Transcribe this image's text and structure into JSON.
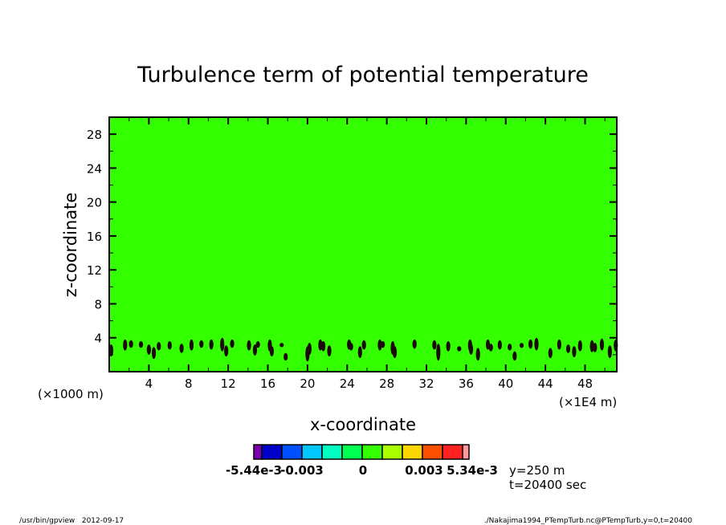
{
  "chart_data": {
    "type": "heatmap",
    "title": "Turbulence term of potential temperature",
    "xlabel": "x-coordinate",
    "ylabel": "z-coordinate",
    "x_unit_note": "(×1E4 m)",
    "y_unit_note": "(×1000 m)",
    "xlim": [
      0,
      51.2
    ],
    "ylim": [
      0,
      30
    ],
    "xticks": [
      4,
      8,
      12,
      16,
      20,
      24,
      28,
      32,
      36,
      40,
      44,
      48
    ],
    "yticks": [
      4,
      8,
      12,
      16,
      20,
      24,
      28
    ],
    "xtick_labels": [
      "4",
      "8",
      "12",
      "16",
      "20",
      "24",
      "28",
      "32",
      "36",
      "40",
      "44",
      "48"
    ],
    "ytick_labels": [
      "4",
      "8",
      "12",
      "16",
      "20",
      "24",
      "28"
    ],
    "background_color": "#33ff00",
    "blob_color": "#1a0a0a",
    "blobs": [
      [
        0.2,
        1.8,
        3.2
      ],
      [
        1.6,
        2.5,
        3.8
      ],
      [
        2.2,
        2.8,
        3.7
      ],
      [
        3.2,
        2.8,
        3.6
      ],
      [
        4.0,
        2.0,
        3.2
      ],
      [
        4.5,
        1.5,
        2.9
      ],
      [
        5.0,
        2.5,
        3.5
      ],
      [
        6.1,
        2.6,
        3.6
      ],
      [
        7.3,
        2.2,
        3.3
      ],
      [
        8.3,
        2.5,
        3.8
      ],
      [
        9.3,
        2.8,
        3.7
      ],
      [
        10.3,
        2.6,
        3.8
      ],
      [
        11.4,
        2.4,
        4.0
      ],
      [
        11.8,
        1.8,
        3.1
      ],
      [
        12.4,
        2.8,
        3.8
      ],
      [
        14.1,
        2.5,
        3.7
      ],
      [
        14.7,
        1.9,
        3.2
      ],
      [
        15.0,
        2.8,
        3.6
      ],
      [
        16.2,
        2.4,
        3.8
      ],
      [
        16.4,
        1.8,
        3.0
      ],
      [
        17.4,
        2.9,
        3.4
      ],
      [
        17.8,
        1.3,
        2.2
      ],
      [
        20.0,
        1.2,
        3.0
      ],
      [
        20.2,
        2.0,
        3.4
      ],
      [
        21.3,
        2.5,
        3.8
      ],
      [
        21.6,
        2.4,
        3.6
      ],
      [
        22.2,
        1.8,
        3.1
      ],
      [
        24.2,
        2.6,
        3.8
      ],
      [
        24.4,
        2.5,
        3.4
      ],
      [
        25.3,
        1.6,
        3.0
      ],
      [
        25.7,
        2.6,
        3.7
      ],
      [
        27.3,
        2.5,
        3.8
      ],
      [
        27.6,
        2.8,
        3.6
      ],
      [
        28.6,
        2.0,
        3.6
      ],
      [
        28.8,
        1.6,
        3.0
      ],
      [
        30.8,
        2.7,
        3.8
      ],
      [
        32.8,
        2.6,
        3.7
      ],
      [
        33.2,
        1.3,
        3.3
      ],
      [
        34.2,
        2.4,
        3.6
      ],
      [
        35.3,
        2.4,
        3.0
      ],
      [
        36.4,
        2.4,
        3.8
      ],
      [
        36.5,
        2.0,
        3.3
      ],
      [
        37.2,
        1.3,
        2.8
      ],
      [
        38.2,
        2.6,
        3.8
      ],
      [
        38.5,
        2.4,
        3.3
      ],
      [
        39.4,
        2.6,
        3.7
      ],
      [
        40.4,
        2.5,
        3.3
      ],
      [
        40.9,
        1.3,
        2.4
      ],
      [
        41.6,
        2.8,
        3.4
      ],
      [
        42.5,
        2.7,
        3.8
      ],
      [
        43.1,
        2.5,
        4.0
      ],
      [
        44.5,
        1.6,
        2.8
      ],
      [
        45.4,
        2.6,
        3.8
      ],
      [
        46.3,
        2.2,
        3.2
      ],
      [
        46.9,
        1.7,
        3.0
      ],
      [
        47.5,
        2.4,
        3.7
      ],
      [
        48.7,
        2.3,
        3.7
      ],
      [
        49.0,
        2.3,
        3.4
      ],
      [
        49.7,
        2.5,
        3.9
      ],
      [
        50.5,
        1.6,
        3.1
      ],
      [
        51.1,
        2.4,
        3.8
      ]
    ],
    "colorbar": {
      "colors": [
        "#7a00b0",
        "#0000c8",
        "#0050ff",
        "#00c8ff",
        "#00ffc0",
        "#00ff50",
        "#33ff00",
        "#aaff00",
        "#ffd700",
        "#ff5000",
        "#ff2020",
        "#ff9a9a"
      ],
      "labels": [
        "-5.44e-3",
        "-0.003",
        "0",
        "0.003",
        "5.34e-3"
      ],
      "label_values": [
        -0.00544,
        -0.003,
        0,
        0.003,
        0.00534
      ]
    },
    "annotations": {
      "y_slice": "y=250 m",
      "time": "t=20400 sec"
    }
  },
  "footer": {
    "left": "/usr/bin/gpview   2012-09-17",
    "right": "./Nakajima1994_PTempTurb.nc@PTempTurb,y=0,t=20400"
  }
}
